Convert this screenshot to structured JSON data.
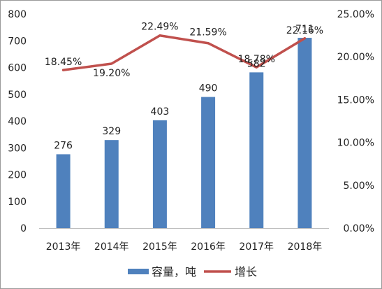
{
  "chart_data": {
    "type": "bar",
    "categories": [
      "2013年",
      "2014年",
      "2015年",
      "2016年",
      "2017年",
      "2018年"
    ],
    "series": [
      {
        "name": "容量，吨",
        "type": "bar",
        "axis": "left",
        "color": "#4F81BD",
        "values": [
          276,
          329,
          403,
          490,
          582,
          711
        ],
        "labels": [
          "276",
          "329",
          "403",
          "490",
          "582",
          "711"
        ]
      },
      {
        "name": "增长",
        "type": "line",
        "axis": "right",
        "color": "#C0504D",
        "values": [
          18.45,
          19.2,
          22.49,
          21.59,
          18.78,
          22.16
        ],
        "labels": [
          "18.45%",
          "19.20%",
          "22.49%",
          "21.59%",
          "18.78%",
          "22.16%"
        ]
      }
    ],
    "y_left": {
      "ylim": [
        0,
        800
      ],
      "ticks": [
        "0",
        "100",
        "200",
        "300",
        "400",
        "500",
        "600",
        "700",
        "800"
      ]
    },
    "y_right": {
      "ylim": [
        0,
        25
      ],
      "ticks": [
        "0.00%",
        "5.00%",
        "10.00%",
        "15.00%",
        "20.00%",
        "25.00%"
      ]
    },
    "grid": false,
    "legend": "bottom"
  }
}
